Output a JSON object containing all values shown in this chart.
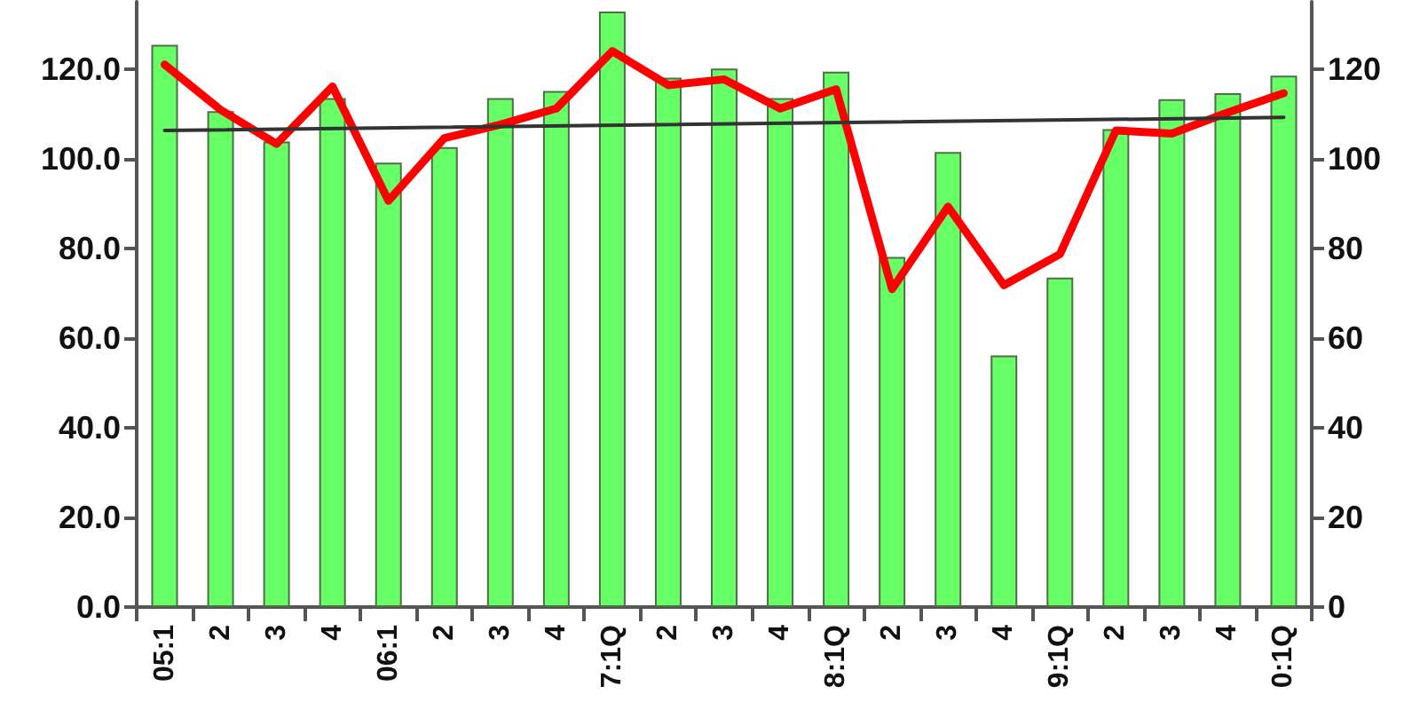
{
  "chart_data": {
    "type": "bar",
    "categories": [
      "05:1",
      "2",
      "3",
      "4",
      "06:1",
      "2",
      "3",
      "4",
      "7:1Q",
      "2",
      "3",
      "4",
      "8:1Q",
      "2",
      "3",
      "4",
      "9:1Q",
      "2",
      "3",
      "4",
      "0:1Q"
    ],
    "series": [
      {
        "color": "#66ff66",
        "values": [
          125.4,
          110.6,
          103.8,
          113.5,
          99.1,
          102.6,
          113.5,
          115.1,
          132.8,
          118.1,
          120.1,
          113.5,
          119.4,
          78.1,
          101.5,
          56.1,
          73.5,
          106.6,
          113.3,
          114.6,
          118.5
        ]
      },
      {
        "type": "line",
        "axis": "y2",
        "color": "#ff0000",
        "values": [
          121.0,
          110.9,
          103.3,
          116.1,
          90.6,
          104.6,
          107.6,
          111.2,
          124.0,
          116.4,
          117.7,
          111.2,
          115.5,
          70.9,
          89.3,
          71.8,
          78.7,
          106.3,
          105.6,
          110.3,
          114.6
        ]
      },
      {
        "type": "line",
        "color": "#333333",
        "x": [
          "05:1",
          "0:1Q"
        ],
        "values": [
          106.3,
          109.2
        ]
      }
    ],
    "ylim": [
      0,
      135
    ],
    "yticks": [
      {
        "value": 0,
        "label": "0.0"
      },
      {
        "value": 20,
        "label": "20.0"
      },
      {
        "value": 40,
        "label": "40.0"
      },
      {
        "value": 60,
        "label": "60.0"
      },
      {
        "value": 80,
        "label": "80.0"
      },
      {
        "value": 100,
        "label": "100.0"
      },
      {
        "value": 120,
        "label": "120.0"
      }
    ],
    "y2lim": [
      0,
      135
    ],
    "y2ticks": [
      0,
      20,
      40,
      60,
      80,
      100,
      120
    ],
    "marker": "none"
  }
}
